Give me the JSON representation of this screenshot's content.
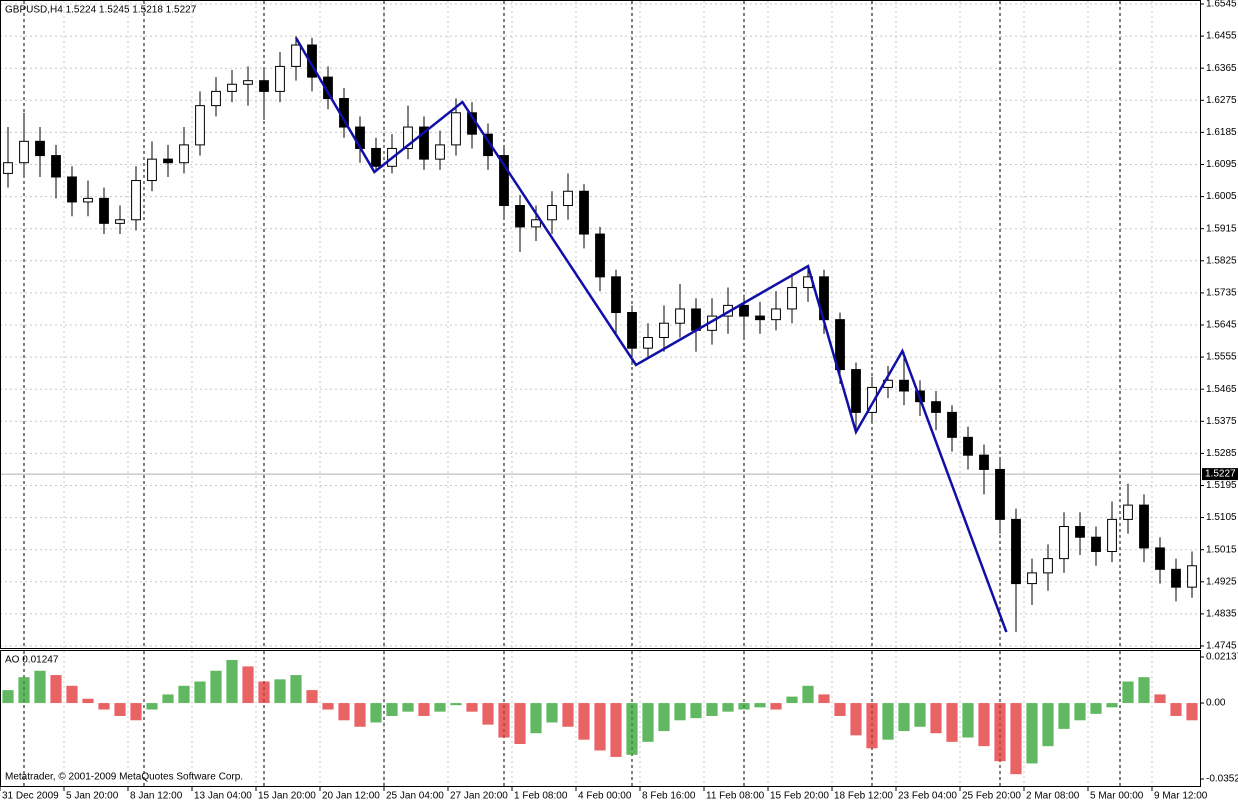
{
  "chart_data": [
    {
      "type": "candlestick",
      "title": "GBPUSD,H4  1.5224 1.5245 1.5218 1.5227",
      "open": [
        1.607,
        1.61,
        1.616,
        1.612,
        1.606,
        1.599,
        1.6,
        1.593,
        1.594,
        1.605,
        1.611,
        1.61,
        1.615,
        1.626,
        1.63,
        1.632,
        1.633,
        1.63,
        1.637,
        1.643,
        1.634,
        1.628,
        1.62,
        1.614,
        1.609,
        1.614,
        1.62,
        1.611,
        1.615,
        1.624,
        1.618,
        1.612,
        1.598,
        1.592,
        1.594,
        1.598,
        1.602,
        1.59,
        1.578,
        1.568,
        1.558,
        1.561,
        1.565,
        1.569,
        1.563,
        1.567,
        1.57,
        1.567,
        1.566,
        1.569,
        1.575,
        1.578,
        1.566,
        1.552,
        1.54,
        1.547,
        1.549,
        1.546,
        1.543,
        1.54,
        1.533,
        1.528,
        1.524,
        1.51,
        1.492,
        1.495,
        1.499,
        1.508,
        1.505,
        1.501,
        1.51,
        1.514,
        1.502,
        1.496,
        1.491
      ],
      "high": [
        1.62,
        1.624,
        1.62,
        1.615,
        1.609,
        1.605,
        1.603,
        1.598,
        1.609,
        1.616,
        1.615,
        1.62,
        1.63,
        1.634,
        1.636,
        1.637,
        1.636,
        1.641,
        1.6455,
        1.645,
        1.637,
        1.631,
        1.623,
        1.617,
        1.618,
        1.626,
        1.623,
        1.619,
        1.628,
        1.627,
        1.621,
        1.615,
        1.601,
        1.598,
        1.602,
        1.607,
        1.604,
        1.592,
        1.58,
        1.57,
        1.565,
        1.57,
        1.576,
        1.572,
        1.572,
        1.575,
        1.573,
        1.571,
        1.574,
        1.579,
        1.581,
        1.58,
        1.568,
        1.554,
        1.55,
        1.553,
        1.557,
        1.549,
        1.546,
        1.542,
        1.536,
        1.531,
        1.527,
        1.513,
        1.499,
        1.503,
        1.512,
        1.512,
        1.508,
        1.515,
        1.52,
        1.517,
        1.505,
        1.499,
        1.501
      ],
      "low": [
        1.603,
        1.606,
        1.606,
        1.6,
        1.595,
        1.595,
        1.59,
        1.59,
        1.591,
        1.602,
        1.606,
        1.607,
        1.612,
        1.623,
        1.627,
        1.626,
        1.622,
        1.627,
        1.633,
        1.63,
        1.625,
        1.617,
        1.61,
        1.6074,
        1.607,
        1.611,
        1.608,
        1.608,
        1.612,
        1.614,
        1.608,
        1.594,
        1.585,
        1.588,
        1.59,
        1.594,
        1.586,
        1.574,
        1.562,
        1.5533,
        1.555,
        1.557,
        1.561,
        1.557,
        1.559,
        1.562,
        1.561,
        1.562,
        1.563,
        1.565,
        1.571,
        1.562,
        1.548,
        1.5345,
        1.537,
        1.544,
        1.542,
        1.539,
        1.535,
        1.529,
        1.524,
        1.517,
        1.506,
        1.4784,
        1.486,
        1.49,
        1.495,
        1.5,
        1.497,
        1.498,
        1.506,
        1.498,
        1.492,
        1.487,
        1.488
      ],
      "close": [
        1.61,
        1.616,
        1.612,
        1.606,
        1.599,
        1.6,
        1.593,
        1.594,
        1.605,
        1.611,
        1.61,
        1.615,
        1.626,
        1.63,
        1.632,
        1.633,
        1.63,
        1.637,
        1.643,
        1.634,
        1.628,
        1.62,
        1.614,
        1.609,
        1.614,
        1.62,
        1.611,
        1.615,
        1.624,
        1.618,
        1.612,
        1.598,
        1.592,
        1.594,
        1.598,
        1.602,
        1.59,
        1.578,
        1.568,
        1.558,
        1.561,
        1.565,
        1.569,
        1.563,
        1.567,
        1.57,
        1.567,
        1.566,
        1.569,
        1.575,
        1.578,
        1.566,
        1.552,
        1.54,
        1.547,
        1.549,
        1.546,
        1.543,
        1.54,
        1.533,
        1.528,
        1.524,
        1.51,
        1.492,
        1.495,
        1.499,
        1.508,
        1.505,
        1.501,
        1.51,
        1.514,
        1.502,
        1.496,
        1.491,
        1.497
      ],
      "up_color": "#ffffff",
      "down_color": "#000000",
      "wick_color": "#000000",
      "lines": [
        {
          "color": "#1010a8",
          "x": [
            18.5,
            23.4,
            28.9,
            39.75,
            50.5,
            53.5,
            56.4,
            62.9
          ],
          "values": [
            1.645,
            1.6074,
            1.627,
            1.5533,
            1.581,
            1.5345,
            1.5572,
            1.4784
          ]
        }
      ],
      "current_price": 1.5227,
      "separators": [
        1.5,
        9,
        16.5,
        24,
        31.5,
        39.5,
        46.5,
        54.5,
        62.5,
        70
      ],
      "xlim": [
        0,
        75
      ],
      "xticks": [
        {
          "value": 0,
          "label": "31 Dec 2009"
        },
        {
          "value": 4,
          "label": "5 Jan 20:00"
        },
        {
          "value": 8,
          "label": "8 Jan 12:00"
        },
        {
          "value": 12,
          "label": "13 Jan 04:00"
        },
        {
          "value": 16,
          "label": "15 Jan 20:00"
        },
        {
          "value": 20,
          "label": "20 Jan 12:00"
        },
        {
          "value": 24,
          "label": "25 Jan 04:00"
        },
        {
          "value": 28,
          "label": "27 Jan 20:00"
        },
        {
          "value": 32,
          "label": "1 Feb 08:00"
        },
        {
          "value": 36,
          "label": "4 Feb 00:00"
        },
        {
          "value": 40,
          "label": "8 Feb 16:00"
        },
        {
          "value": 44,
          "label": "11 Feb 08:00"
        },
        {
          "value": 48,
          "label": "15 Feb 20:00"
        },
        {
          "value": 52,
          "label": "18 Feb 12:00"
        },
        {
          "value": 56,
          "label": "23 Feb 04:00"
        },
        {
          "value": 60,
          "label": "25 Feb 20:00"
        },
        {
          "value": 64,
          "label": "2 Mar 08:00"
        },
        {
          "value": 68,
          "label": "5 Mar 00:00"
        },
        {
          "value": 72,
          "label": "9 Mar 12:00"
        }
      ],
      "ylim": [
        1.4745,
        1.6545
      ],
      "yticks": [
        1.6545,
        1.6455,
        1.6365,
        1.6275,
        1.6185,
        1.6095,
        1.6005,
        1.5915,
        1.5825,
        1.5735,
        1.5645,
        1.5555,
        1.5465,
        1.5375,
        1.5285,
        1.5195,
        1.5105,
        1.5015,
        1.4925,
        1.4835,
        1.4745
      ],
      "grid": true
    },
    {
      "type": "ao",
      "title": "AO 0.01247",
      "annotation": "Metatrader, © 2001-2009 MetaQuotes Software Corp.",
      "values": [
        0.006,
        0.012,
        0.015,
        0.013,
        0.008,
        0.002,
        -0.003,
        -0.006,
        -0.008,
        -0.003,
        0.004,
        0.008,
        0.01,
        0.015,
        0.02,
        0.017,
        0.01,
        0.011,
        0.013,
        0.006,
        -0.003,
        -0.008,
        -0.011,
        -0.009,
        -0.006,
        -0.004,
        -0.006,
        -0.004,
        -0.001,
        -0.004,
        -0.01,
        -0.016,
        -0.019,
        -0.014,
        -0.009,
        -0.011,
        -0.017,
        -0.022,
        -0.025,
        -0.024,
        -0.018,
        -0.013,
        -0.008,
        -0.007,
        -0.006,
        -0.004,
        -0.003,
        -0.002,
        -0.003,
        0.003,
        0.008,
        0.004,
        -0.006,
        -0.015,
        -0.021,
        -0.017,
        -0.013,
        -0.011,
        -0.014,
        -0.018,
        -0.016,
        -0.02,
        -0.027,
        -0.033,
        -0.028,
        -0.02,
        -0.012,
        -0.008,
        -0.005,
        -0.002,
        0.01,
        0.012,
        0.004,
        -0.006,
        -0.008
      ],
      "up_color": "#2ea02e",
      "down_color": "#e03030",
      "ylim": [
        -0.03524,
        0.02137
      ],
      "yticks": [
        0.02137,
        {
          "value": 0,
          "label": "0.00"
        },
        -0.03524
      ]
    }
  ]
}
